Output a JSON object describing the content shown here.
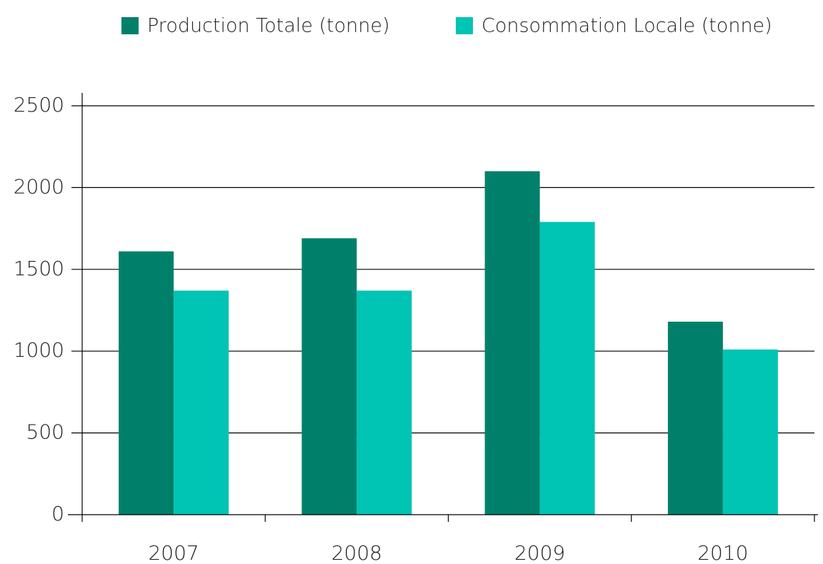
{
  "chart_data": {
    "type": "bar",
    "categories": [
      "2007",
      "2008",
      "2009",
      "2010"
    ],
    "series": [
      {
        "name": "Production Totale (tonne)",
        "color": "#00806a",
        "values": [
          1610,
          1690,
          2100,
          1180
        ]
      },
      {
        "name": "Consommation Locale (tonne)",
        "color": "#00c4b4",
        "values": [
          1370,
          1370,
          1790,
          1010
        ]
      }
    ],
    "ylim": [
      0,
      2500
    ],
    "yticks": [
      0,
      500,
      1000,
      1500,
      2000,
      2500
    ],
    "grid": true,
    "legend": "top"
  }
}
